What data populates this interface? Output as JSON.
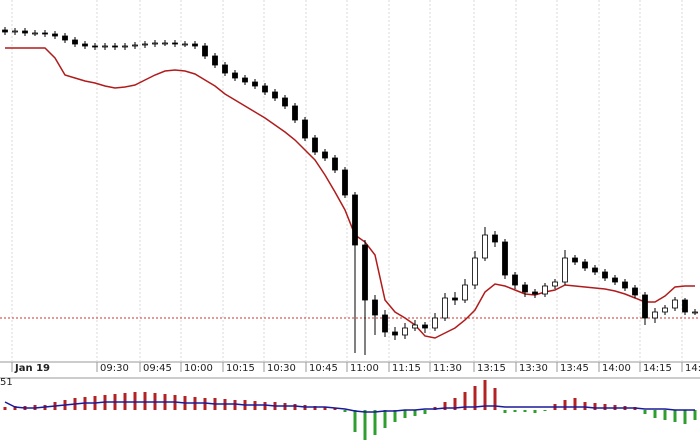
{
  "chart_data": [
    {
      "type": "candlestick",
      "x": [
        0.5,
        1.5,
        2.5,
        3.5,
        4.5,
        5.5,
        6.5,
        7.5,
        8.5,
        9.5,
        10.5,
        11.5,
        12.5,
        13.5,
        14.5,
        15.5,
        16.5,
        17.5,
        18.5,
        19.5,
        20.5,
        21.5,
        22.5,
        23.5,
        24.5,
        25.5,
        26.5,
        27.5,
        28.5,
        29.5,
        30.5,
        31.5,
        32.5,
        33.5,
        34.5,
        35.5,
        36.5,
        37.5,
        38.5,
        39.5,
        40.5,
        41.5,
        42.5,
        43.5,
        44.5,
        45.5,
        46.5,
        47.5,
        48.5,
        49.5,
        50.5,
        51.5,
        52.5,
        53.5,
        54.5,
        55.5,
        56.5,
        57.5,
        58.5,
        59.5,
        60.5,
        61.5,
        62.5,
        63.5,
        64.5,
        65.5,
        66.5,
        67.5,
        68.5,
        69.5
      ],
      "open": [
        325,
        323,
        324,
        322,
        322,
        321,
        319,
        315,
        311,
        309,
        308,
        309,
        308,
        309,
        310,
        311,
        312,
        312,
        311,
        311,
        309,
        299,
        290,
        282,
        277,
        273,
        269,
        263,
        257,
        249,
        235,
        217,
        203,
        197,
        185,
        160,
        110,
        55,
        40,
        23,
        20,
        27,
        30,
        27,
        37,
        57,
        55,
        70,
        97,
        120,
        113,
        80,
        70,
        63,
        61,
        69,
        73,
        97,
        93,
        87,
        83,
        77,
        73,
        67,
        60,
        37,
        43,
        47,
        55,
        43
      ],
      "high": [
        328,
        327,
        327,
        325,
        325,
        324,
        322,
        318,
        314,
        312,
        312,
        312,
        312,
        313,
        314,
        315,
        315,
        315,
        314,
        314,
        312,
        302,
        293,
        285,
        280,
        276,
        272,
        266,
        260,
        252,
        238,
        220,
        206,
        200,
        188,
        163,
        115,
        60,
        45,
        28,
        32,
        35,
        33,
        42,
        62,
        63,
        76,
        104,
        128,
        124,
        116,
        83,
        73,
        66,
        72,
        76,
        105,
        100,
        96,
        90,
        86,
        80,
        76,
        70,
        63,
        47,
        50,
        58,
        57,
        46
      ],
      "low": [
        320,
        320,
        319,
        319,
        318,
        316,
        312,
        308,
        306,
        305,
        305,
        305,
        305,
        306,
        307,
        308,
        309,
        308,
        308,
        306,
        296,
        287,
        279,
        274,
        270,
        266,
        260,
        254,
        246,
        232,
        214,
        200,
        194,
        182,
        157,
        2,
        0,
        20,
        18,
        15,
        16,
        24,
        22,
        24,
        34,
        50,
        52,
        66,
        94,
        108,
        76,
        66,
        58,
        57,
        58,
        66,
        70,
        90,
        84,
        80,
        74,
        70,
        64,
        57,
        30,
        32,
        40,
        44,
        40,
        40
      ],
      "close": [
        323,
        324,
        322,
        322,
        321,
        319,
        315,
        311,
        309,
        308,
        309,
        308,
        309,
        310,
        311,
        312,
        312,
        311,
        311,
        309,
        299,
        290,
        282,
        277,
        273,
        269,
        263,
        257,
        249,
        235,
        217,
        203,
        197,
        185,
        160,
        110,
        55,
        40,
        23,
        20,
        27,
        30,
        27,
        37,
        57,
        55,
        70,
        97,
        120,
        113,
        80,
        70,
        63,
        61,
        69,
        73,
        97,
        93,
        87,
        83,
        77,
        73,
        67,
        60,
        37,
        43,
        47,
        55,
        43,
        43
      ],
      "line": {
        "color": "#b01c1c",
        "values": [
          307,
          307,
          307,
          307,
          307,
          297,
          280,
          277,
          274,
          272,
          269,
          267,
          268,
          270,
          275,
          280,
          284,
          285,
          284,
          281,
          275,
          269,
          261,
          255,
          249,
          243,
          237,
          230,
          223,
          215,
          205,
          195,
          180,
          163,
          145,
          120,
          113,
          100,
          55,
          43,
          37,
          30,
          19,
          17,
          22,
          27,
          35,
          45,
          63,
          71,
          69,
          65,
          61,
          60,
          63,
          65,
          70,
          69,
          68,
          67,
          66,
          64,
          61,
          57,
          53,
          53,
          59,
          68,
          69,
          69
        ]
      },
      "hline": 37,
      "hline_color": "#d03030",
      "xlim": [
        0,
        70
      ],
      "xticks": [
        {
          "value": 1.2,
          "label": "Jan 19"
        },
        {
          "value": 9.7,
          "label": "09:30"
        },
        {
          "value": 14.0,
          "label": "09:45"
        },
        {
          "value": 18.1,
          "label": "10:00"
        },
        {
          "value": 22.3,
          "label": "10:15"
        },
        {
          "value": 26.4,
          "label": "10:30"
        },
        {
          "value": 30.6,
          "label": "10:45"
        },
        {
          "value": 34.7,
          "label": "11:00"
        },
        {
          "value": 38.9,
          "label": "11:15"
        },
        {
          "value": 43.0,
          "label": "11:30"
        },
        {
          "value": 47.4,
          "label": "13:15"
        },
        {
          "value": 51.6,
          "label": "13:30"
        },
        {
          "value": 55.7,
          "label": "13:45"
        },
        {
          "value": 59.9,
          "label": "14:00"
        },
        {
          "value": 64.0,
          "label": "14:15"
        },
        {
          "value": 68.2,
          "label": "14:"
        }
      ],
      "ylim": [
        0,
        350
      ],
      "grid": true
    },
    {
      "type": "bar",
      "label": "51",
      "values": [
        3,
        4,
        4,
        5,
        5,
        8,
        10,
        12,
        13,
        14,
        15,
        16,
        17,
        18,
        18,
        17,
        16,
        15,
        14,
        13,
        12,
        12,
        11,
        10,
        10,
        9,
        8,
        8,
        7,
        6,
        5,
        4,
        3,
        2,
        -2,
        -22,
        -30,
        -25,
        -18,
        -12,
        -8,
        -6,
        -4,
        3,
        8,
        12,
        18,
        24,
        30,
        22,
        -3,
        -2,
        -2,
        -3,
        -1,
        6,
        10,
        12,
        8,
        7,
        6,
        5,
        4,
        3,
        -4,
        -8,
        -10,
        -12,
        -14,
        -10
      ],
      "positive_color": "#b22222",
      "negative_color": "#2e9e2e",
      "line": {
        "color": "#1a1a9c",
        "values": [
          8,
          3,
          2,
          2,
          3,
          4,
          5,
          6,
          7,
          7,
          8,
          8,
          8,
          8,
          8,
          8,
          8,
          8,
          7,
          7,
          7,
          6,
          6,
          6,
          5,
          5,
          5,
          4,
          4,
          4,
          3,
          3,
          3,
          2,
          1,
          -1,
          -2,
          -2,
          -1,
          -1,
          0,
          0,
          1,
          1,
          2,
          2,
          3,
          3,
          4,
          4,
          3,
          3,
          3,
          3,
          3,
          3,
          3,
          3,
          3,
          2,
          2,
          2,
          2,
          2,
          1,
          1,
          1,
          0,
          0,
          0
        ]
      },
      "ylim": [
        -37,
        32
      ]
    }
  ]
}
